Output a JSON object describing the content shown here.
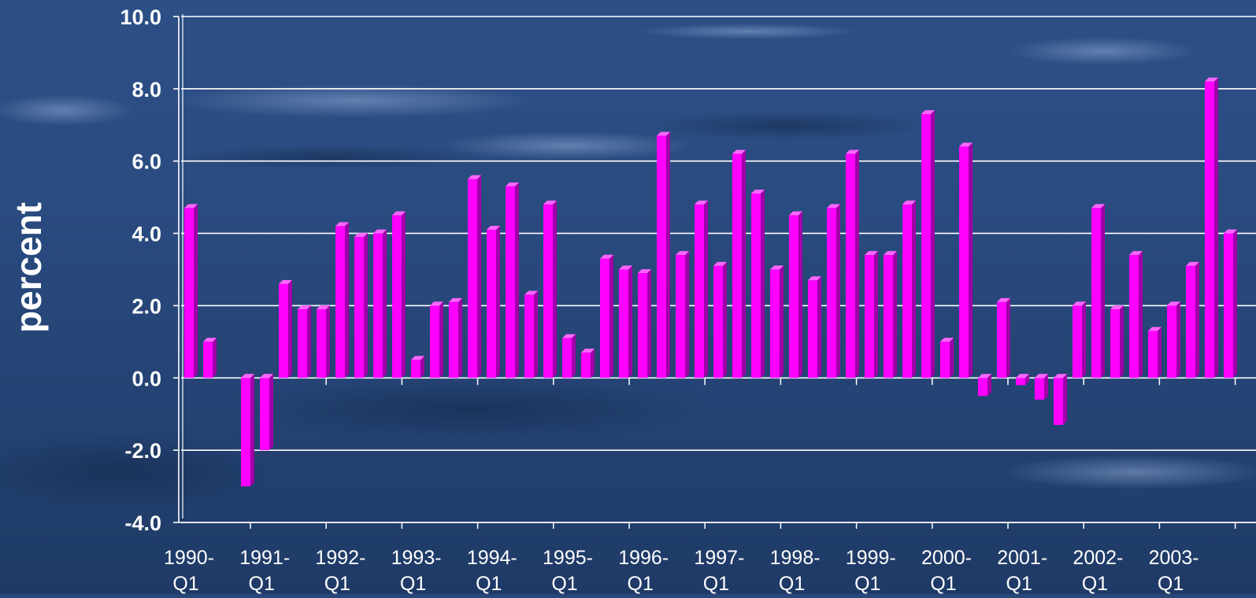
{
  "chart_data": {
    "type": "bar",
    "ylabel": "percent",
    "ylim": [
      -4.0,
      10.0
    ],
    "y_ticks": [
      "10.0",
      "8.0",
      "6.0",
      "4.0",
      "2.0",
      "0.0",
      "-2.0",
      "-4.0"
    ],
    "x_tick_labels": [
      {
        "year": "1990-",
        "q": "Q1"
      },
      {
        "year": "1991-",
        "q": "Q1"
      },
      {
        "year": "1992-",
        "q": "Q1"
      },
      {
        "year": "1993-",
        "q": "Q1"
      },
      {
        "year": "1994-",
        "q": "Q1"
      },
      {
        "year": "1995-",
        "q": "Q1"
      },
      {
        "year": "1996-",
        "q": "Q1"
      },
      {
        "year": "1997-",
        "q": "Q1"
      },
      {
        "year": "1998-",
        "q": "Q1"
      },
      {
        "year": "1999-",
        "q": "Q1"
      },
      {
        "year": "2000-",
        "q": "Q1"
      },
      {
        "year": "2001-",
        "q": "Q1"
      },
      {
        "year": "2002-",
        "q": "Q1"
      },
      {
        "year": "2003-",
        "q": "Q1"
      }
    ],
    "categories": [
      "1990-Q1",
      "1990-Q2",
      "1990-Q3",
      "1990-Q4",
      "1991-Q1",
      "1991-Q2",
      "1991-Q3",
      "1991-Q4",
      "1992-Q1",
      "1992-Q2",
      "1992-Q3",
      "1992-Q4",
      "1993-Q1",
      "1993-Q2",
      "1993-Q3",
      "1993-Q4",
      "1994-Q1",
      "1994-Q2",
      "1994-Q3",
      "1994-Q4",
      "1995-Q1",
      "1995-Q2",
      "1995-Q3",
      "1995-Q4",
      "1996-Q1",
      "1996-Q2",
      "1996-Q3",
      "1996-Q4",
      "1997-Q1",
      "1997-Q2",
      "1997-Q3",
      "1997-Q4",
      "1998-Q1",
      "1998-Q2",
      "1998-Q3",
      "1998-Q4",
      "1999-Q1",
      "1999-Q2",
      "1999-Q3",
      "1999-Q4",
      "2000-Q1",
      "2000-Q2",
      "2000-Q3",
      "2000-Q4",
      "2001-Q1",
      "2001-Q2",
      "2001-Q3",
      "2001-Q4",
      "2002-Q1",
      "2002-Q2",
      "2002-Q3",
      "2002-Q4",
      "2003-Q1",
      "2003-Q2",
      "2003-Q3",
      "2003-Q4"
    ],
    "values": [
      4.7,
      1.0,
      0.0,
      -3.0,
      -2.0,
      2.6,
      1.9,
      1.9,
      4.2,
      3.9,
      4.0,
      4.5,
      0.5,
      2.0,
      2.1,
      5.5,
      4.1,
      5.3,
      2.3,
      4.8,
      1.1,
      0.7,
      3.3,
      3.0,
      2.9,
      6.7,
      3.4,
      4.8,
      3.1,
      6.2,
      5.1,
      3.0,
      4.5,
      2.7,
      4.7,
      6.2,
      3.4,
      3.4,
      4.8,
      7.3,
      1.0,
      6.4,
      -0.5,
      2.1,
      -0.2,
      -0.6,
      -1.3,
      2.0,
      4.7,
      1.9,
      3.4,
      1.3,
      2.0,
      3.1,
      8.2,
      4.0
    ],
    "grid": true,
    "colors": {
      "bar_face": "#ff00ff",
      "bar_side": "#a000a8",
      "bar_top": "#ff66ff",
      "grid": "#ffffff",
      "text": "#ffffff",
      "background": "#27477a"
    }
  }
}
